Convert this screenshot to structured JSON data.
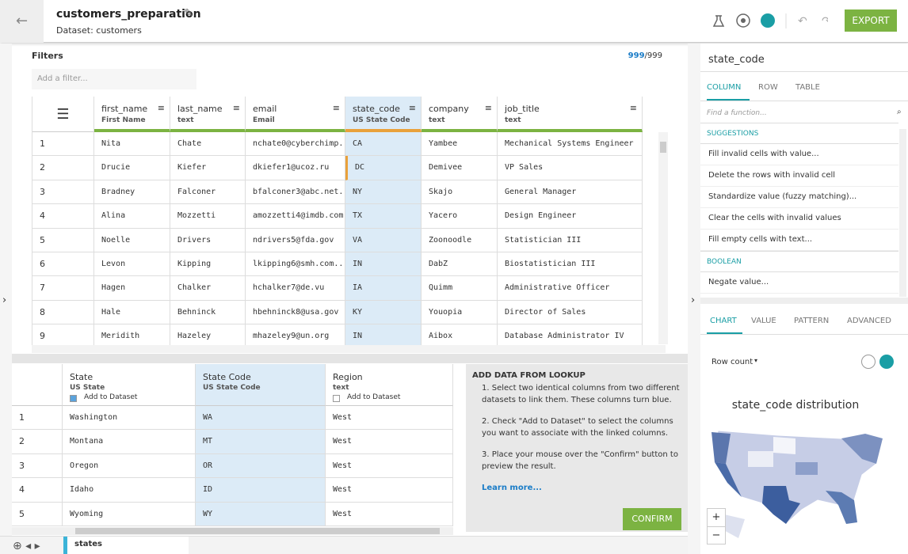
{
  "header": {
    "title": "customers_preparation",
    "subtitle": "Dataset: customers",
    "export": "EXPORT"
  },
  "filters": {
    "label": "Filters",
    "placeholder": "Add a filter...",
    "selected": "999",
    "total": "/999"
  },
  "grid": {
    "columns": [
      {
        "name": "first_name",
        "type": "First Name"
      },
      {
        "name": "last_name",
        "type": "text"
      },
      {
        "name": "email",
        "type": "Email"
      },
      {
        "name": "state_code",
        "type": "US State Code"
      },
      {
        "name": "company",
        "type": "text"
      },
      {
        "name": "job_title",
        "type": "text"
      }
    ],
    "rows": [
      [
        "1",
        "Nita",
        "Chate",
        "nchate0@cyberchimp...",
        "CA",
        "Yambee",
        "Mechanical Systems Engineer"
      ],
      [
        "2",
        "Drucie",
        "Kiefer",
        "dkiefer1@ucoz.ru",
        "DC",
        "Demivee",
        "VP Sales"
      ],
      [
        "3",
        "Bradney",
        "Falconer",
        "bfalconer3@abc.net...",
        "NY",
        "Skajo",
        "General Manager"
      ],
      [
        "4",
        "Alina",
        "Mozzetti",
        "amozzetti4@imdb.com",
        "TX",
        "Yacero",
        "Design Engineer"
      ],
      [
        "5",
        "Noelle",
        "Drivers",
        "ndrivers5@fda.gov",
        "VA",
        "Zoonoodle",
        "Statistician III"
      ],
      [
        "6",
        "Levon",
        "Kipping",
        "lkipping6@smh.com....",
        "IN",
        "DabZ",
        "Biostatistician III"
      ],
      [
        "7",
        "Hagen",
        "Chalker",
        "hchalker7@de.vu",
        "IA",
        "Quimm",
        "Administrative Officer"
      ],
      [
        "8",
        "Hale",
        "Behninck",
        "hbehninck8@usa.gov",
        "KY",
        "Youopia",
        "Director of Sales"
      ],
      [
        "9",
        "Meridith",
        "Hazeley",
        "mhazeley9@un.org",
        "IN",
        "Aibox",
        "Database Administrator IV"
      ]
    ]
  },
  "lookup_grid": {
    "add_label": "Add to Dataset",
    "columns": [
      {
        "name": "State",
        "type": "US State"
      },
      {
        "name": "State Code",
        "type": "US State Code"
      },
      {
        "name": "Region",
        "type": "text"
      }
    ],
    "rows": [
      [
        "1",
        "Washington",
        "WA",
        "West"
      ],
      [
        "2",
        "Montana",
        "MT",
        "West"
      ],
      [
        "3",
        "Oregon",
        "OR",
        "West"
      ],
      [
        "4",
        "Idaho",
        "ID",
        "West"
      ],
      [
        "5",
        "Wyoming",
        "WY",
        "West"
      ]
    ]
  },
  "lookup_panel": {
    "title": "ADD DATA FROM LOOKUP",
    "steps": [
      "1. Select two identical columns from two different datasets to link them. These columns turn blue.",
      "2. Check \"Add to Dataset\" to select the columns you want to associate with the linked columns.",
      "3. Place your mouse over the \"Confirm\" button to preview the result."
    ],
    "link": "Learn more...",
    "confirm": "CONFIRM"
  },
  "bottom_tab": "states",
  "side": {
    "title": "state_code",
    "tabs": [
      "COLUMN",
      "ROW",
      "TABLE"
    ],
    "search": "Find a function...",
    "sections": [
      {
        "name": "SUGGESTIONS",
        "items": [
          "Fill invalid cells with value...",
          "Delete the rows with invalid cell",
          "Standardize value (fuzzy matching)...",
          "Clear the cells with invalid values",
          "Fill empty cells with text..."
        ]
      },
      {
        "name": "BOOLEAN",
        "items": [
          "Negate value..."
        ]
      }
    ],
    "chart_tabs": [
      "CHART",
      "VALUE",
      "PATTERN",
      "ADVANCED"
    ],
    "row_count": "Row count",
    "chart_title": "state_code distribution",
    "zoom_in": "+",
    "zoom_out": "−"
  }
}
